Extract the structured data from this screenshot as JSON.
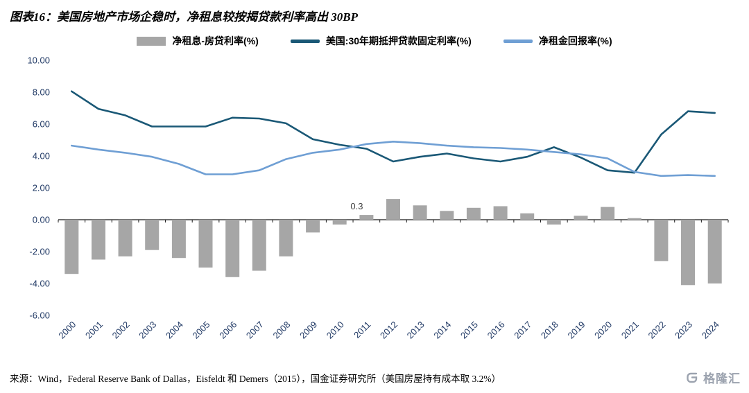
{
  "title": "图表16：美国房地产市场企稳时，净租息较按揭贷款利率高出 30BP",
  "watermark": {
    "text": "格隆汇"
  },
  "footer": {
    "source": "来源：Wind，Federal Reserve Bank of Dallas，Eisfeldt 和 Demers（2015），国金证券研究所（美国房屋持有成本取 3.2%）"
  },
  "chart_data": {
    "type": "bar+line combo",
    "title": "图表16：美国房地产市场企稳时，净租息较按揭贷款利率高出 30BP",
    "xlabel": "",
    "ylabel": "",
    "grid": false,
    "legend_position": "top",
    "ylim": [
      -6,
      10
    ],
    "yticks": [
      10,
      8,
      6,
      4,
      2,
      0,
      -2,
      -4,
      -6
    ],
    "categories": [
      "2000",
      "2001",
      "2002",
      "2003",
      "2004",
      "2005",
      "2006",
      "2007",
      "2008",
      "2009",
      "2010",
      "2011",
      "2012",
      "2013",
      "2014",
      "2015",
      "2016",
      "2017",
      "2018",
      "2019",
      "2020",
      "2021",
      "2022",
      "2023",
      "2024"
    ],
    "series": [
      {
        "name": "净租息-房贷利率(%)",
        "type": "bar",
        "color": "#A6A6A6",
        "values": [
          -3.4,
          -2.5,
          -2.3,
          -1.9,
          -2.4,
          -3.0,
          -3.6,
          -3.2,
          -2.3,
          -0.8,
          -0.3,
          0.3,
          1.3,
          0.9,
          0.55,
          0.75,
          0.85,
          0.4,
          -0.3,
          0.25,
          0.8,
          0.1,
          -2.6,
          -4.1,
          -4.0
        ]
      },
      {
        "name": "美国:30年期抵押贷款固定利率(%)",
        "type": "line",
        "color": "#1A5876",
        "values": [
          8.05,
          6.95,
          6.55,
          5.85,
          5.85,
          5.85,
          6.4,
          6.35,
          6.05,
          5.05,
          4.7,
          4.45,
          3.65,
          3.95,
          4.15,
          3.85,
          3.65,
          3.95,
          4.55,
          3.9,
          3.1,
          2.95,
          5.35,
          6.8,
          6.7
        ]
      },
      {
        "name": "净租金回报率(%)",
        "type": "line",
        "color": "#6F9FD4",
        "values": [
          4.65,
          4.4,
          4.2,
          3.95,
          3.5,
          2.85,
          2.85,
          3.1,
          3.8,
          4.2,
          4.4,
          4.75,
          4.9,
          4.8,
          4.65,
          4.55,
          4.5,
          4.4,
          4.25,
          4.1,
          3.85,
          3.0,
          2.75,
          2.8,
          2.75
        ]
      }
    ],
    "annotations": [
      {
        "index": 11,
        "value": 0.3,
        "text": "0.3"
      }
    ]
  }
}
